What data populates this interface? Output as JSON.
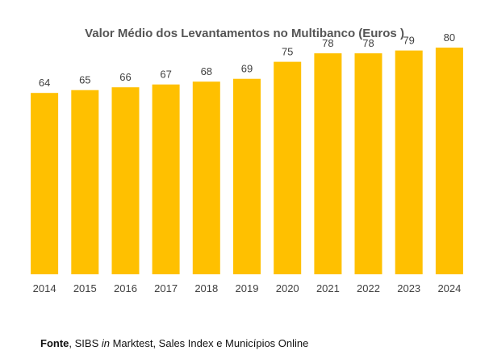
{
  "chart_data": {
    "type": "bar",
    "title": "Valor Médio dos Levantamentos no Multibanco (Euros )",
    "categories": [
      "2014",
      "2015",
      "2016",
      "2017",
      "2018",
      "2019",
      "2020",
      "2021",
      "2022",
      "2023",
      "2024"
    ],
    "values": [
      64,
      65,
      66,
      67,
      68,
      69,
      75,
      78,
      78,
      79,
      80
    ],
    "data_labels": [
      "64",
      "65",
      "66",
      "67",
      "68",
      "69",
      "75",
      "78",
      "78",
      "79",
      "80"
    ],
    "xlabel": "",
    "ylabel": "",
    "ylim": [
      0,
      84
    ],
    "grid": false,
    "legend": "none",
    "bar_color": "#FFC000"
  },
  "source": {
    "label": "Fonte",
    "pre": ", SIBS ",
    "italic": "in",
    "post": " Marktest, Sales Index e Municípios Online"
  },
  "colors": {
    "label_text": "#404040",
    "title_text": "#555555"
  }
}
